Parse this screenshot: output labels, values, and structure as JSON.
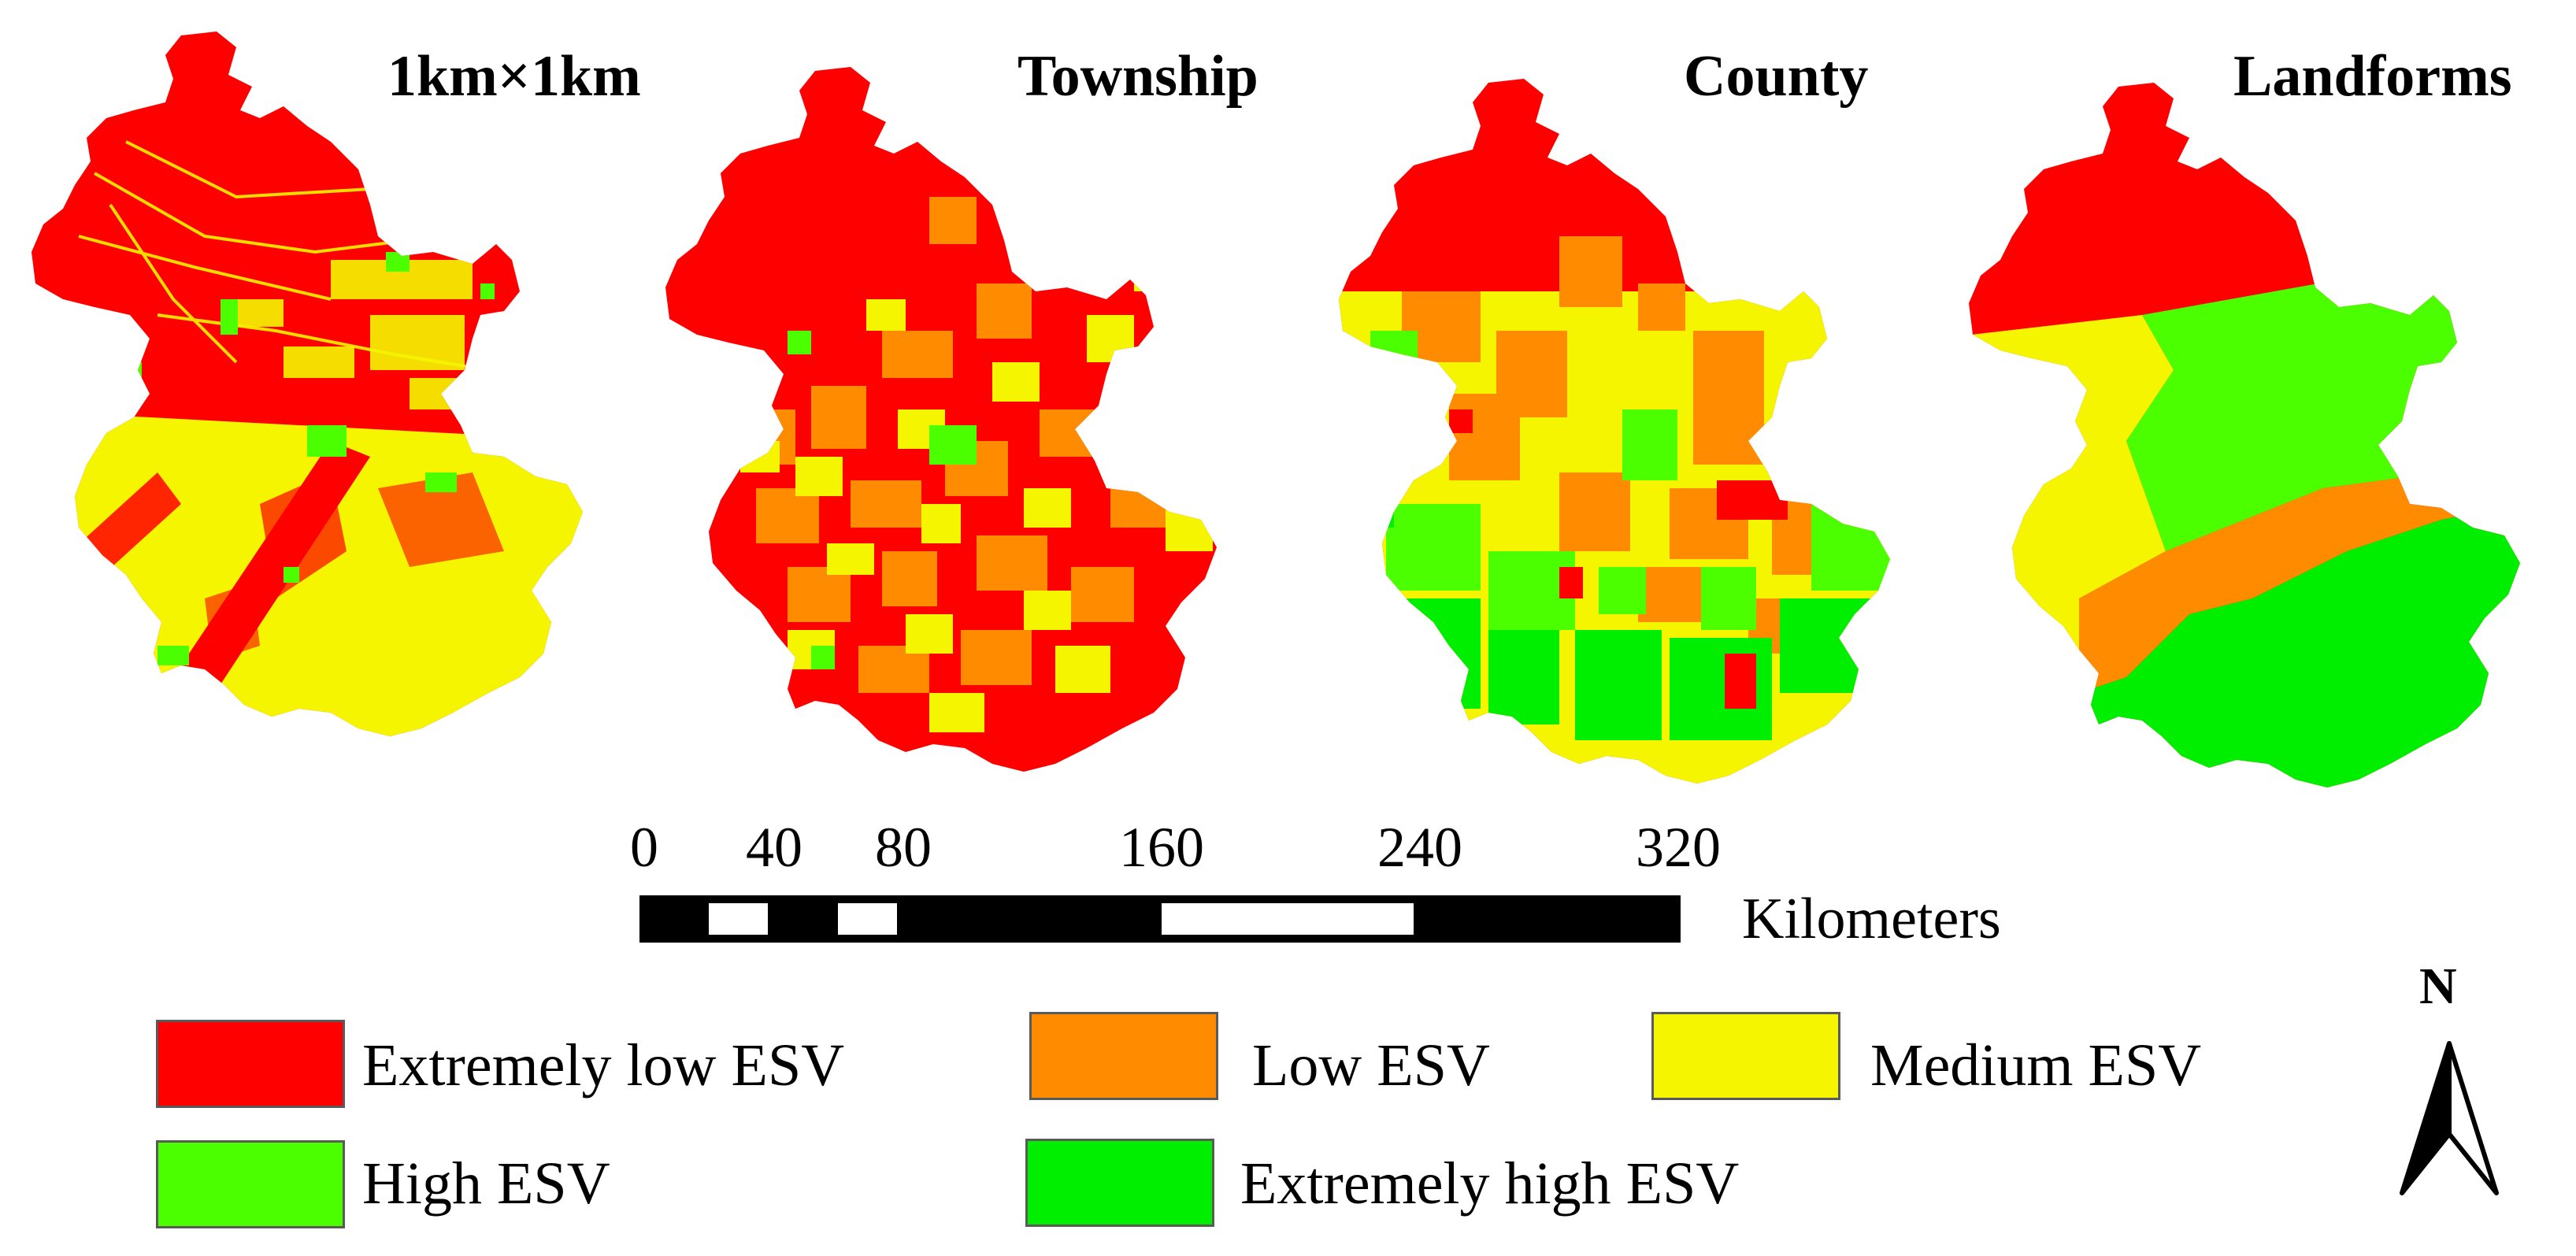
{
  "panels": [
    {
      "title": "1km×1km"
    },
    {
      "title": "Township"
    },
    {
      "title": "County"
    },
    {
      "title": "Landforms"
    }
  ],
  "scale_bar": {
    "ticks": [
      "0",
      "40",
      "80",
      "160",
      "240",
      "320"
    ],
    "units": "Kilometers"
  },
  "legend": [
    {
      "label": "Extremely low ESV",
      "color": "#ff0000"
    },
    {
      "label": "Low ESV",
      "color": "#ff8c00"
    },
    {
      "label": "Medium ESV",
      "color": "#f5f500"
    },
    {
      "label": "High ESV",
      "color": "#4cff00"
    },
    {
      "label": "Extremely high ESV",
      "color": "#00ee00"
    }
  ],
  "north_arrow": {
    "label": "N"
  }
}
